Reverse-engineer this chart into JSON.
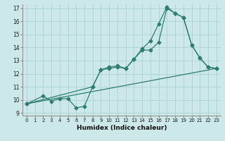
{
  "title": "",
  "xlabel": "Humidex (Indice chaleur)",
  "bg_color": "#cce8e8",
  "grid_color": "#b0d4d4",
  "line_color": "#2e7d6e",
  "xlim": [
    -0.5,
    23.5
  ],
  "ylim": [
    8.8,
    17.3
  ],
  "xticks": [
    0,
    1,
    2,
    3,
    4,
    5,
    6,
    7,
    8,
    9,
    10,
    11,
    12,
    13,
    14,
    15,
    16,
    17,
    18,
    19,
    20,
    21,
    22,
    23
  ],
  "yticks": [
    9,
    10,
    11,
    12,
    13,
    14,
    15,
    16,
    17
  ],
  "series1_x": [
    0,
    2,
    3,
    4,
    5,
    6,
    7,
    8,
    9,
    10,
    11,
    12,
    13,
    14,
    15,
    16,
    17,
    18,
    19,
    20,
    21,
    22,
    23
  ],
  "series1_y": [
    9.7,
    10.3,
    9.9,
    10.1,
    10.1,
    9.4,
    9.5,
    11.0,
    12.3,
    12.5,
    12.6,
    12.4,
    13.1,
    13.8,
    13.8,
    14.4,
    17.0,
    16.6,
    16.3,
    14.2,
    13.2,
    12.5,
    12.4
  ],
  "series2_x": [
    0,
    8,
    9,
    10,
    11,
    12,
    13,
    14,
    15,
    16,
    17,
    18,
    19,
    20,
    21,
    22,
    23
  ],
  "series2_y": [
    9.7,
    11.0,
    12.3,
    12.4,
    12.5,
    12.4,
    13.1,
    13.9,
    14.5,
    15.8,
    17.1,
    16.6,
    16.3,
    14.2,
    13.2,
    12.5,
    12.4
  ],
  "series3_x": [
    0,
    23
  ],
  "series3_y": [
    9.7,
    12.4
  ]
}
